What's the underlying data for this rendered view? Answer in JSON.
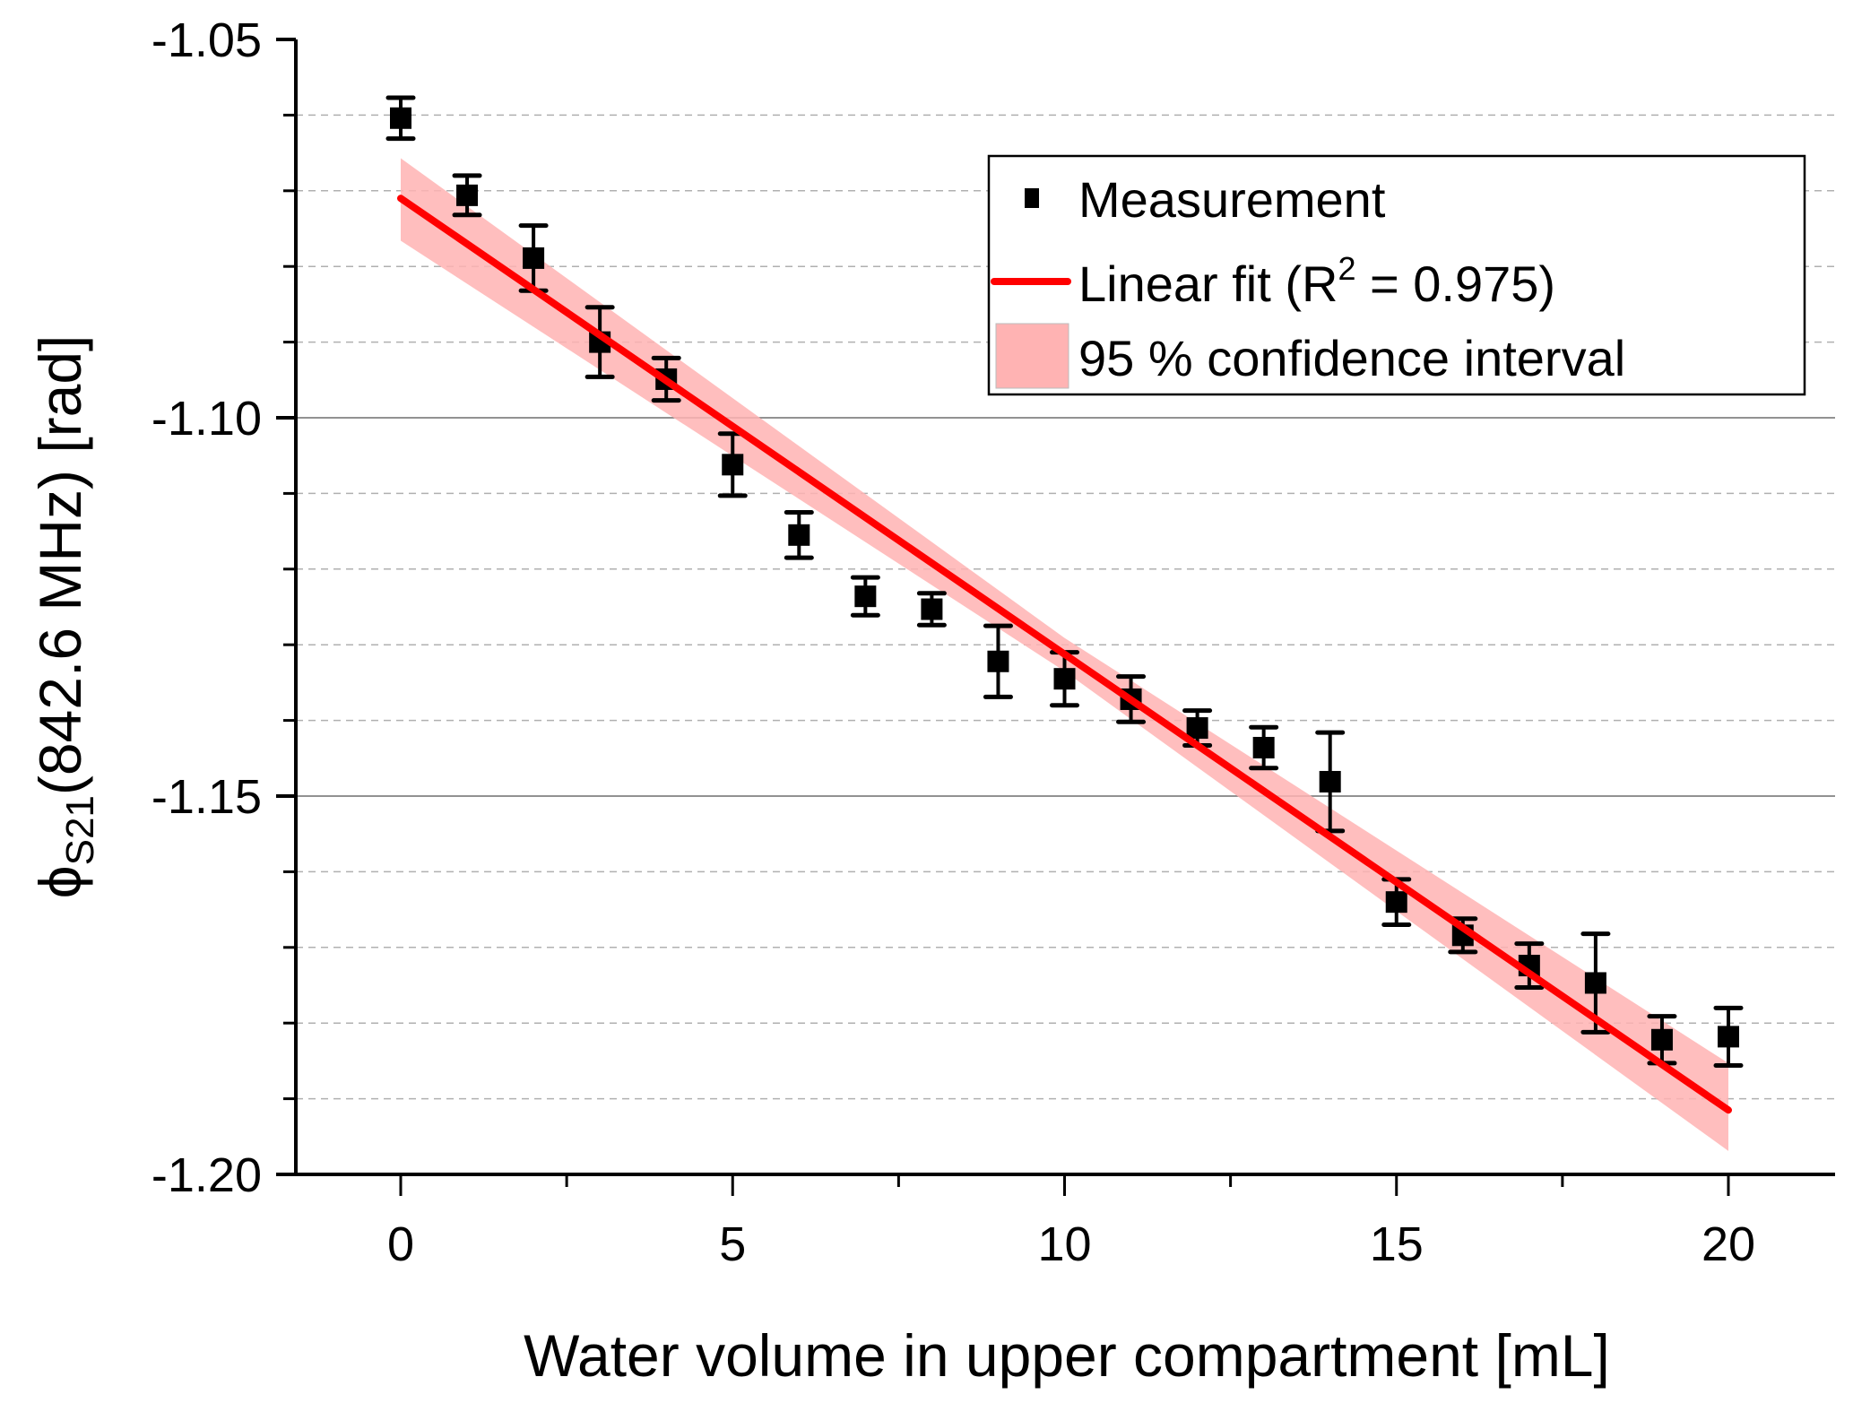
{
  "chart_data": {
    "type": "scatter",
    "title": "",
    "xlabel": "Water volume in upper compartment [mL]",
    "ylabel": {
      "symbol": "ϕ",
      "subscript": "S21",
      "rest": "(842.6 MHz) [rad]"
    },
    "xlim": [
      -1.7,
      21.5
    ],
    "ylim": [
      -1.2,
      -1.05
    ],
    "x_ticks": [
      0,
      5,
      10,
      15,
      20
    ],
    "x_tick_labels": [
      "0",
      "5",
      "10",
      "15",
      "20"
    ],
    "x_minor_ticks": [
      2.5,
      7.5,
      12.5,
      17.5
    ],
    "y_ticks": [
      -1.05,
      -1.1,
      -1.15,
      -1.2
    ],
    "y_tick_labels": [
      "-1.05",
      "-1.10",
      "-1.15",
      "-1.20"
    ],
    "y_minor_ticks": [
      -1.06,
      -1.07,
      -1.08,
      -1.09,
      -1.11,
      -1.12,
      -1.13,
      -1.14,
      -1.16,
      -1.17,
      -1.18,
      -1.19
    ],
    "grid": {
      "major_y": true,
      "minor_y_dashed": true
    },
    "legend_position": "top-right",
    "series": [
      {
        "name": "Measurement",
        "kind": "points-with-error",
        "color": "#000000",
        "x": [
          0,
          1,
          2,
          3,
          4,
          5,
          6,
          7,
          8,
          9,
          10,
          11,
          12,
          13,
          14,
          15,
          16,
          17,
          18,
          19,
          20
        ],
        "y": [
          -1.0604,
          -1.0706,
          -1.0789,
          -1.09,
          -1.0949,
          -1.1062,
          -1.1155,
          -1.1236,
          -1.1253,
          -1.1322,
          -1.1345,
          -1.1372,
          -1.141,
          -1.1436,
          -1.1481,
          -1.164,
          -1.1684,
          -1.1724,
          -1.1747,
          -1.1822,
          -1.1818
        ],
        "error": [
          0.0027,
          0.0026,
          0.0043,
          0.0046,
          0.0028,
          0.0041,
          0.003,
          0.0025,
          0.0021,
          0.0047,
          0.0035,
          0.003,
          0.0023,
          0.0027,
          0.0065,
          0.003,
          0.0022,
          0.0029,
          0.0065,
          0.0031,
          0.0038
        ]
      },
      {
        "name": "Linear fit (R² = 0.975)",
        "kind": "line",
        "color": "#ff0000",
        "x": [
          0,
          20
        ],
        "y": [
          -1.071,
          -1.1915
        ],
        "r_squared": 0.975
      },
      {
        "name": "95 % confidence interval",
        "kind": "band",
        "color": "#ffb3b3",
        "x": [
          0,
          10,
          20
        ],
        "upper": [
          -1.0657,
          -1.1291,
          -1.1853
        ],
        "lower": [
          -1.0766,
          -1.1335,
          -1.1969
        ]
      }
    ],
    "legend": [
      {
        "label": "Measurement",
        "marker": "square"
      },
      {
        "label_main": "Linear fit (R",
        "label_sup": "2",
        "label_end": " = 0.975)",
        "marker": "line"
      },
      {
        "label": "95 % confidence interval",
        "marker": "patch"
      }
    ]
  }
}
